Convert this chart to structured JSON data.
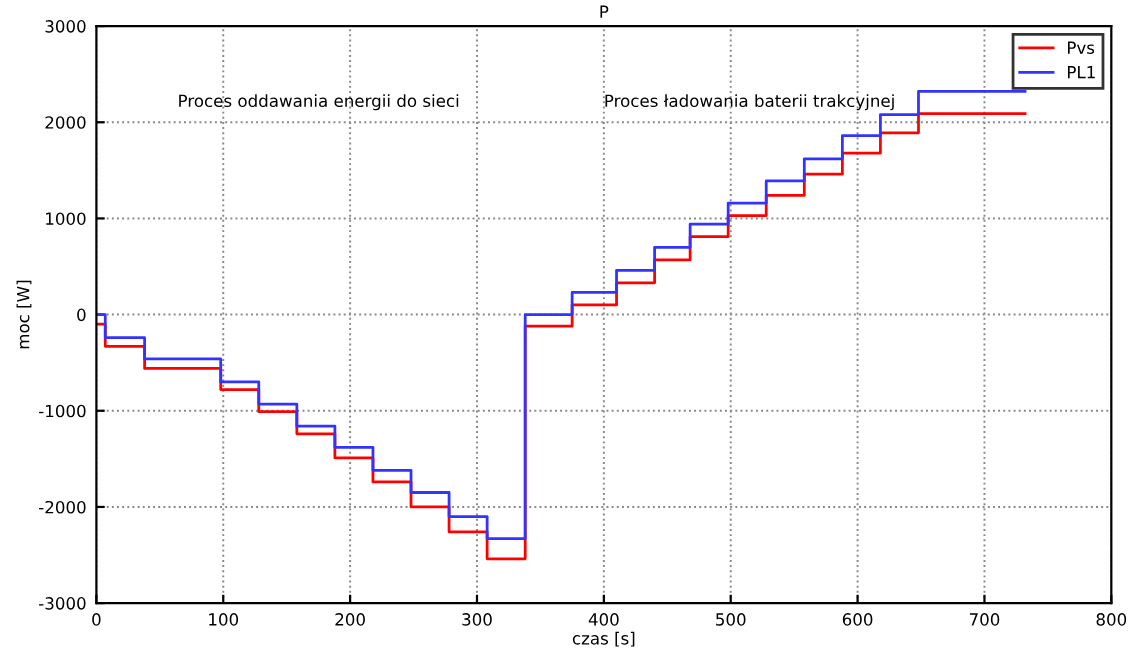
{
  "chart_data": {
    "type": "step",
    "title": "P",
    "xlabel": "czas [s]",
    "ylabel": "moc [W]",
    "annotations": [
      "Proces oddawania energii do sieci",
      "Proces ładowania baterii trakcyjnej"
    ],
    "x": [
      0,
      7,
      38,
      98,
      128,
      158,
      188,
      218,
      248,
      278,
      308,
      338,
      375,
      410,
      440,
      468,
      498,
      528,
      558,
      588,
      618,
      648,
      732
    ],
    "series": [
      {
        "name": "Pvs",
        "color": "#ff0000",
        "values": [
          -100,
          -330,
          -560,
          -780,
          -1010,
          -1240,
          -1490,
          -1740,
          -2000,
          -2260,
          -2540,
          -120,
          100,
          330,
          570,
          810,
          1030,
          1240,
          1460,
          1680,
          1890,
          2090,
          2090
        ]
      },
      {
        "name": "PL1",
        "color": "#3333ff",
        "values": [
          0,
          -240,
          -460,
          -700,
          -930,
          -1160,
          -1380,
          -1620,
          -1850,
          -2100,
          -2330,
          0,
          230,
          460,
          700,
          940,
          1160,
          1390,
          1620,
          1860,
          2080,
          2320,
          2320
        ]
      }
    ],
    "xlim": [
      0,
      800
    ],
    "ylim": [
      -3000,
      3000
    ],
    "xticks": [
      0,
      100,
      200,
      300,
      400,
      500,
      600,
      700,
      800
    ],
    "yticks": [
      -3000,
      -2000,
      -1000,
      0,
      1000,
      2000,
      3000
    ],
    "grid": true,
    "legend": "top right",
    "line_style": "solid"
  }
}
